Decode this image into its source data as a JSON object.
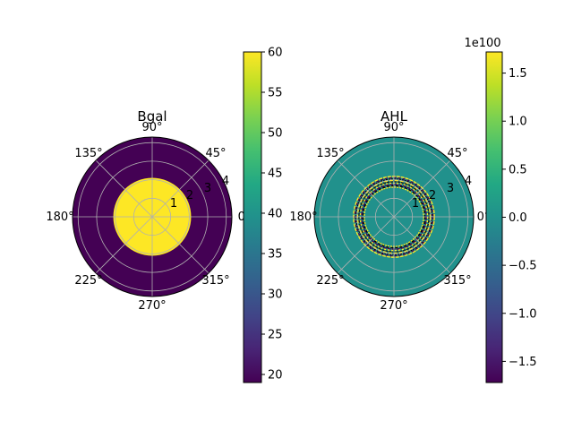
{
  "chart_data": [
    {
      "type": "heatmap",
      "projection": "polar",
      "title": "Bgal",
      "theta_tick_labels": [
        "0°",
        "45°",
        "90°",
        "135°",
        "180°",
        "225°",
        "270°",
        "315°"
      ],
      "r_tick_labels": [
        "1",
        "2",
        "3",
        "4"
      ],
      "rlim": [
        0,
        4.3
      ],
      "grid": true,
      "field": {
        "description_values": "uniform disk inside radius, uniform outside",
        "inner_radius": 2.1,
        "inner_value": 60,
        "outer_value": 19
      },
      "colorbar": {
        "colormap": "viridis",
        "min": 19,
        "max": 60,
        "tick_labels": [
          "20",
          "25",
          "30",
          "35",
          "40",
          "45",
          "50",
          "55",
          "60"
        ],
        "tick_values": [
          20,
          25,
          30,
          35,
          40,
          45,
          50,
          55,
          60
        ],
        "offset_label": ""
      }
    },
    {
      "type": "heatmap",
      "projection": "polar",
      "title": "AHL",
      "theta_tick_labels": [
        "0°",
        "45°",
        "90°",
        "135°",
        "180°",
        "225°",
        "270°",
        "315°"
      ],
      "r_tick_labels": [
        "1",
        "2",
        "3",
        "4"
      ],
      "rlim": [
        0,
        4.3
      ],
      "grid": true,
      "field": {
        "background_value": 0,
        "oscillating_ring": [
          1.6,
          2.25
        ],
        "oscillation_range": [
          -1.72,
          1.72
        ]
      },
      "colorbar": {
        "colormap": "viridis",
        "min": -1.72,
        "max": 1.72,
        "tick_labels": [
          "−1.5",
          "−1.0",
          "−0.5",
          "0.0",
          "0.5",
          "1.0",
          "1.5"
        ],
        "tick_values": [
          -1.5,
          -1.0,
          -0.5,
          0.0,
          0.5,
          1.0,
          1.5
        ],
        "offset_label": "1e100"
      }
    }
  ],
  "colors": {
    "viridis_low": "#440154",
    "viridis_mid": "#21918c",
    "viridis_high": "#fde725",
    "grid": "#b0b0b0"
  }
}
